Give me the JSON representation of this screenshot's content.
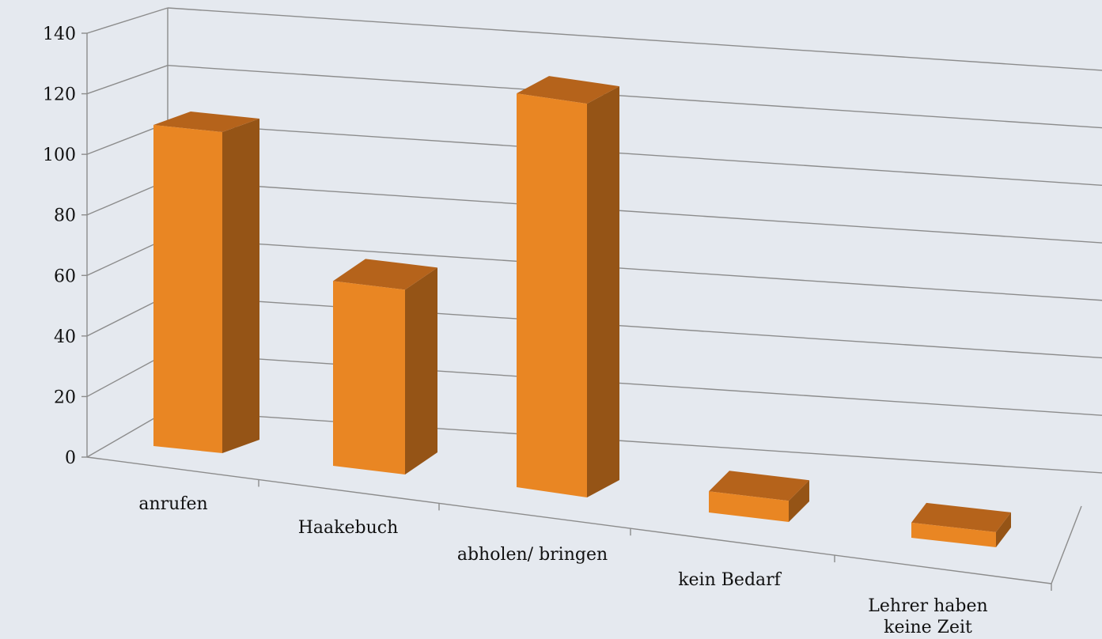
{
  "chart_data": {
    "type": "bar",
    "style": "3d-perspective-column",
    "categories": [
      "anrufen",
      "Haakebuch",
      "abholen/ bringen",
      "kein Bedarf",
      "Lehrer haben keine Zeit"
    ],
    "category_label_lines": [
      [
        "anrufen"
      ],
      [
        "Haakebuch"
      ],
      [
        "abholen/ bringen"
      ],
      [
        "kein Bedarf"
      ],
      [
        "Lehrer haben",
        "keine Zeit"
      ]
    ],
    "values": [
      106,
      61,
      130,
      7,
      5
    ],
    "ylim": [
      0,
      140
    ],
    "yticks": [
      0,
      20,
      40,
      60,
      80,
      100,
      120,
      140
    ],
    "ytick_labels": [
      "0",
      "20",
      "40",
      "60",
      "80",
      "100",
      "120",
      "140"
    ],
    "title": "",
    "xlabel": "",
    "ylabel": "",
    "grid": true,
    "legend": "none",
    "colors": {
      "bar_front": "#e98623",
      "bar_side": "#955416",
      "bar_top": "#b5631b",
      "grid": "#8c8c8c",
      "background": "#e5e9ef",
      "text": "#111111"
    }
  }
}
